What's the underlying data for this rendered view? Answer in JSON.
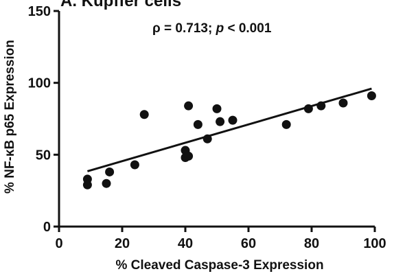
{
  "chart_data": {
    "type": "scatter",
    "title": "A. Kupffer cells",
    "xlabel": "% Cleaved Caspase-3 Expression",
    "ylabel": "% NF-κB p65 Expression",
    "annotation": {
      "rho_symbol": "ρ",
      "rho_text": " = 0.713; ",
      "p_symbol": "p",
      "p_text": " < 0.001"
    },
    "xlim": [
      0,
      100
    ],
    "ylim": [
      0,
      150
    ],
    "xticks": [
      0,
      20,
      40,
      60,
      80,
      100
    ],
    "yticks": [
      0,
      50,
      100,
      150
    ],
    "grid": false,
    "series": [
      {
        "points": [
          [
            9,
            33
          ],
          [
            9,
            29
          ],
          [
            15,
            30
          ],
          [
            16,
            38
          ],
          [
            24,
            43
          ],
          [
            27,
            78
          ],
          [
            40,
            53
          ],
          [
            40,
            48
          ],
          [
            41,
            49
          ],
          [
            41,
            84
          ],
          [
            44,
            71
          ],
          [
            47,
            61
          ],
          [
            50,
            82
          ],
          [
            51,
            73
          ],
          [
            55,
            74
          ],
          [
            72,
            71
          ],
          [
            79,
            82
          ],
          [
            83,
            84
          ],
          [
            90,
            86
          ],
          [
            99,
            91
          ]
        ]
      }
    ],
    "trendline": {
      "x": [
        9,
        99
      ],
      "y": [
        38.5,
        96
      ]
    },
    "colors": {
      "marker": "#111111",
      "axis": "#111111"
    }
  }
}
